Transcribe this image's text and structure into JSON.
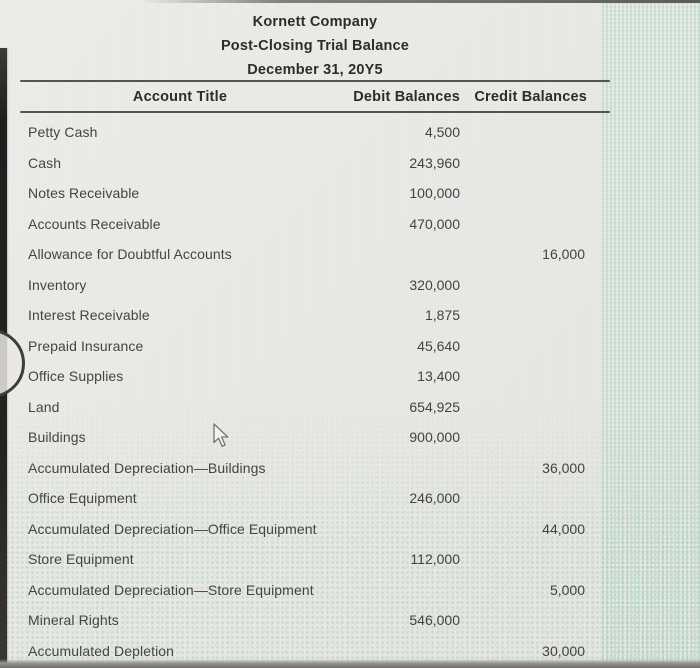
{
  "header": {
    "company": "Kornett Company",
    "report": "Post-Closing Trial Balance",
    "date": "December 31, 20Y5"
  },
  "table": {
    "columns": [
      "Account Title",
      "Debit Balances",
      "Credit Balances"
    ],
    "rows": [
      {
        "account": "Petty Cash",
        "debit": "4,500",
        "credit": ""
      },
      {
        "account": "Cash",
        "debit": "243,960",
        "credit": ""
      },
      {
        "account": "Notes Receivable",
        "debit": "100,000",
        "credit": ""
      },
      {
        "account": "Accounts Receivable",
        "debit": "470,000",
        "credit": ""
      },
      {
        "account": "Allowance for Doubtful Accounts",
        "debit": "",
        "credit": "16,000"
      },
      {
        "account": "Inventory",
        "debit": "320,000",
        "credit": ""
      },
      {
        "account": "Interest Receivable",
        "debit": "1,875",
        "credit": ""
      },
      {
        "account": "Prepaid Insurance",
        "debit": "45,640",
        "credit": ""
      },
      {
        "account": "Office Supplies",
        "debit": "13,400",
        "credit": ""
      },
      {
        "account": "Land",
        "debit": "654,925",
        "credit": ""
      },
      {
        "account": "Buildings",
        "debit": "900,000",
        "credit": ""
      },
      {
        "account": "Accumulated Depreciation—Buildings",
        "debit": "",
        "credit": "36,000"
      },
      {
        "account": "Office Equipment",
        "debit": "246,000",
        "credit": ""
      },
      {
        "account": "Accumulated Depreciation—Office Equipment",
        "debit": "",
        "credit": "44,000"
      },
      {
        "account": "Store Equipment",
        "debit": "112,000",
        "credit": ""
      },
      {
        "account": "Accumulated Depreciation—Store Equipment",
        "debit": "",
        "credit": "5,000"
      },
      {
        "account": "Mineral Rights",
        "debit": "546,000",
        "credit": ""
      },
      {
        "account": "Accumulated Depletion",
        "debit": "",
        "credit": "30,000"
      }
    ]
  },
  "colors": {
    "background": "#e9e8e5",
    "text": "#454442",
    "heading_text": "#2d2c2a",
    "rule": "#55534e",
    "left_edge": "#232321",
    "moire_green": "#8ccdaf",
    "moire_pink": "#f0afb9"
  }
}
